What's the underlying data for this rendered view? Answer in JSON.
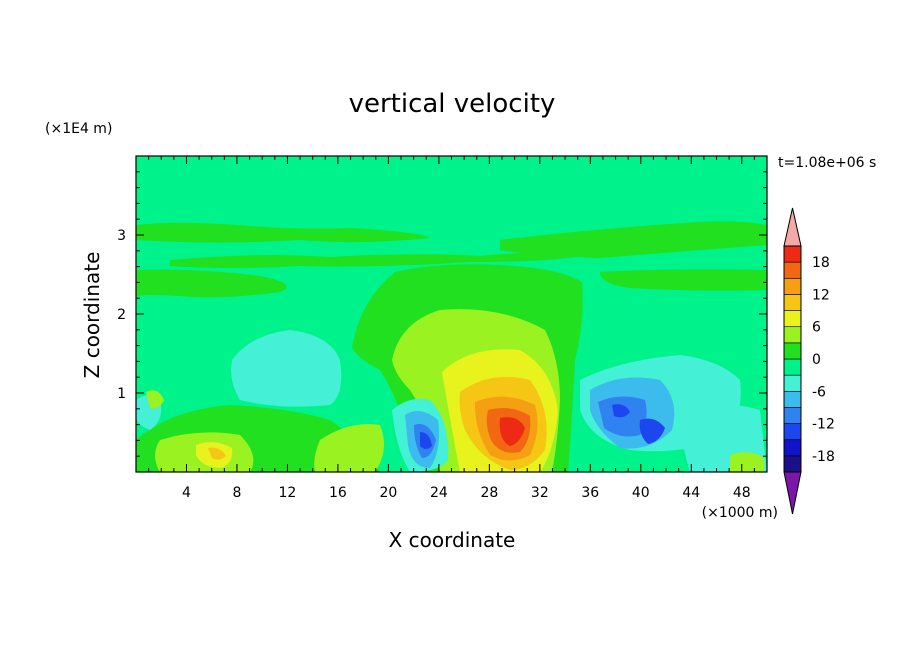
{
  "chart_data": {
    "type": "heatmap",
    "title": "vertical velocity",
    "xlabel": "X coordinate",
    "ylabel": "Z coordinate",
    "x_unit": "(×1000 m)",
    "y_unit": "(×1E4 m)",
    "time_label": "t=1.08e+06 s",
    "xlim": [
      0,
      50
    ],
    "ylim": [
      0,
      4
    ],
    "x_ticks": [
      4,
      8,
      12,
      16,
      20,
      24,
      28,
      32,
      36,
      40,
      44,
      48
    ],
    "y_ticks": [
      1,
      2,
      3
    ],
    "colorbar": {
      "levels": [
        -21,
        -18,
        -15,
        -12,
        -9,
        -6,
        -3,
        0,
        3,
        6,
        9,
        12,
        15,
        18,
        21
      ],
      "tick_labels": [
        "18",
        "12",
        "6",
        "0",
        "-6",
        "-12",
        "-18"
      ],
      "tick_values": [
        18,
        12,
        6,
        0,
        -6,
        -12,
        -18
      ],
      "colors": [
        "#1c0f8a",
        "#1212c8",
        "#1e46ee",
        "#2f82f0",
        "#3cbcec",
        "#44f0d6",
        "#00f28a",
        "#20e020",
        "#9af220",
        "#e8f21c",
        "#f5c614",
        "#f5a012",
        "#f26812",
        "#ee2a14"
      ],
      "under_color": "#7a16a8",
      "over_color": "#f4a8a8"
    },
    "features": [
      {
        "type": "updraft",
        "x": 30,
        "z": 0.6,
        "peak": 18
      },
      {
        "type": "downdraft",
        "x": 39,
        "z": 0.7,
        "peak": -12
      },
      {
        "type": "downdraft",
        "x": 23,
        "z": 0.4,
        "peak": -12
      },
      {
        "type": "updraft",
        "x": 7,
        "z": 0.3,
        "peak": 6
      }
    ]
  }
}
